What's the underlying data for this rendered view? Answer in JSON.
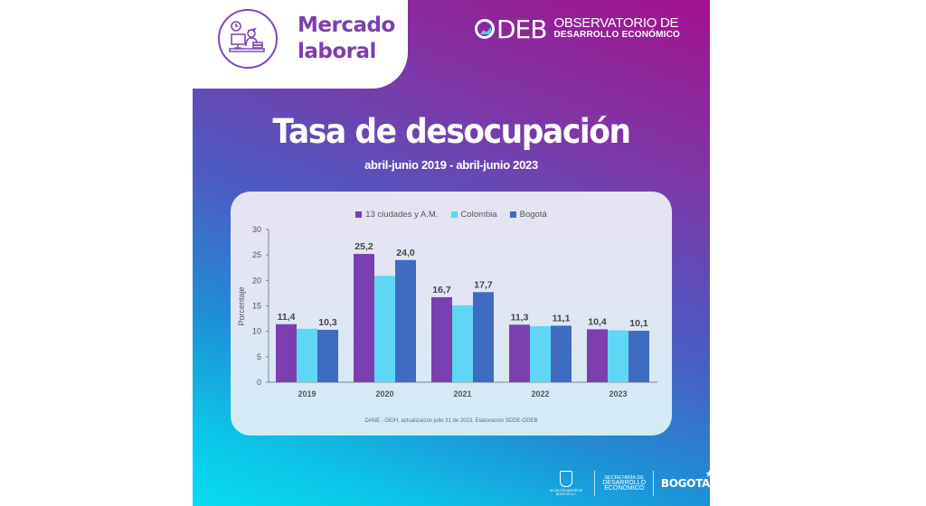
{
  "header": {
    "section_title_line1": "Mercado",
    "section_title_line2": "laboral",
    "section_icon": "worker-at-desk-icon",
    "brand_short": "DEB",
    "brand_line1": "OBSERVATORIO DE",
    "brand_line2": "DESARROLLO ECONÓMICO"
  },
  "title": "Tasa de desocupación",
  "subtitle": "abril-junio 2019 - abril-junio 2023",
  "source": "DANE - GEIH, actualización julio 31 de 2023. Elaboración SDDE-ODEB",
  "footer": {
    "logo1_caption": "ALCALDÍA MAYOR DE BOGOTÁ D.C.",
    "logo2_line1": "SECRETARÍA DE",
    "logo2_line2": "DESARROLLO",
    "logo2_line3": "ECONÓMICO",
    "logo3": "BOGOTA"
  },
  "colors": {
    "series1": "#7b3fb0",
    "series2": "#5fd6f5",
    "series3": "#3f6cc0",
    "axis_text": "#555555",
    "label_text": "#444444"
  },
  "chart_data": {
    "type": "bar",
    "title": "Tasa de desocupación",
    "subtitle": "abril-junio 2019 - abril-junio 2023",
    "xlabel": "",
    "ylabel": "Porcentaje",
    "ylim": [
      0,
      30
    ],
    "yticks": [
      0,
      5,
      10,
      15,
      20,
      25,
      30
    ],
    "grid": false,
    "legend_position": "top-center",
    "categories": [
      "2019",
      "2020",
      "2021",
      "2022",
      "2023"
    ],
    "series": [
      {
        "name": "13 ciudades y A.M.",
        "values": [
          11.4,
          25.2,
          16.7,
          11.3,
          10.4
        ],
        "labels": [
          "11,4",
          "25,2",
          "16,7",
          "11,3",
          "10,4"
        ]
      },
      {
        "name": "Colombia",
        "values": [
          10.5,
          20.9,
          15.1,
          11.0,
          10.2
        ],
        "labels": [
          "",
          "",
          "",
          "",
          ""
        ]
      },
      {
        "name": "Bogotá",
        "values": [
          10.3,
          24.0,
          17.7,
          11.1,
          10.1
        ],
        "labels": [
          "10,3",
          "24,0",
          "17,7",
          "11,1",
          "10,1"
        ]
      }
    ]
  }
}
